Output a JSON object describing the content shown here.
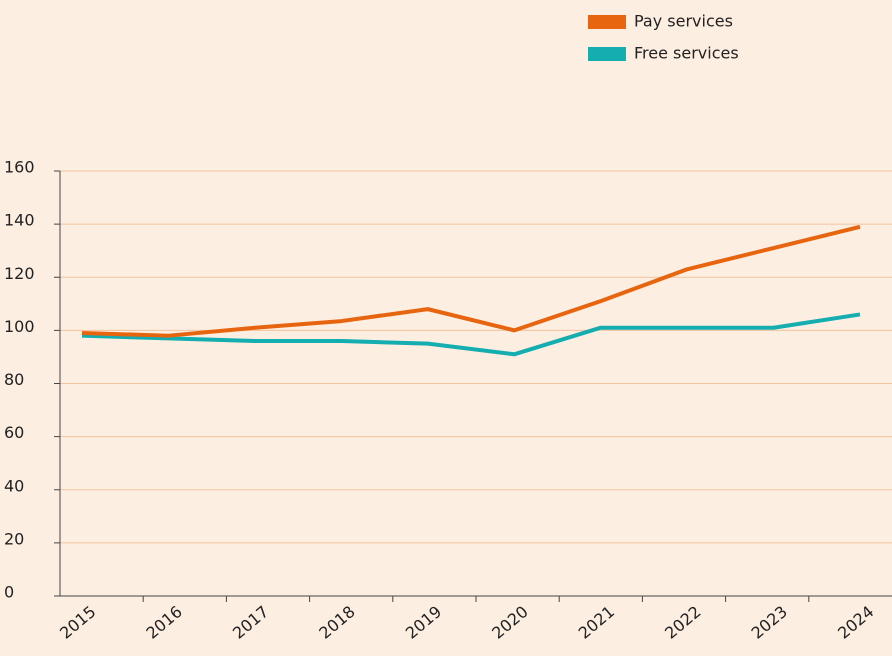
{
  "chart_data": {
    "type": "line",
    "categories": [
      "2015",
      "2016",
      "2017",
      "2018",
      "2019",
      "2020",
      "2021",
      "2022",
      "2023",
      "2024"
    ],
    "series": [
      {
        "name": "Pay services",
        "color": "#e8650f",
        "values": [
          99,
          98,
          101,
          103.5,
          108,
          100,
          111,
          123,
          131,
          139
        ]
      },
      {
        "name": "Free services",
        "color": "#14adb0",
        "values": [
          98,
          97,
          96,
          96,
          95,
          91,
          101,
          101,
          101,
          106
        ]
      }
    ],
    "ylim": [
      0,
      160
    ],
    "yticks": [
      0,
      20,
      40,
      60,
      80,
      100,
      120,
      140,
      160
    ],
    "grid": true,
    "legend": "top-right"
  }
}
